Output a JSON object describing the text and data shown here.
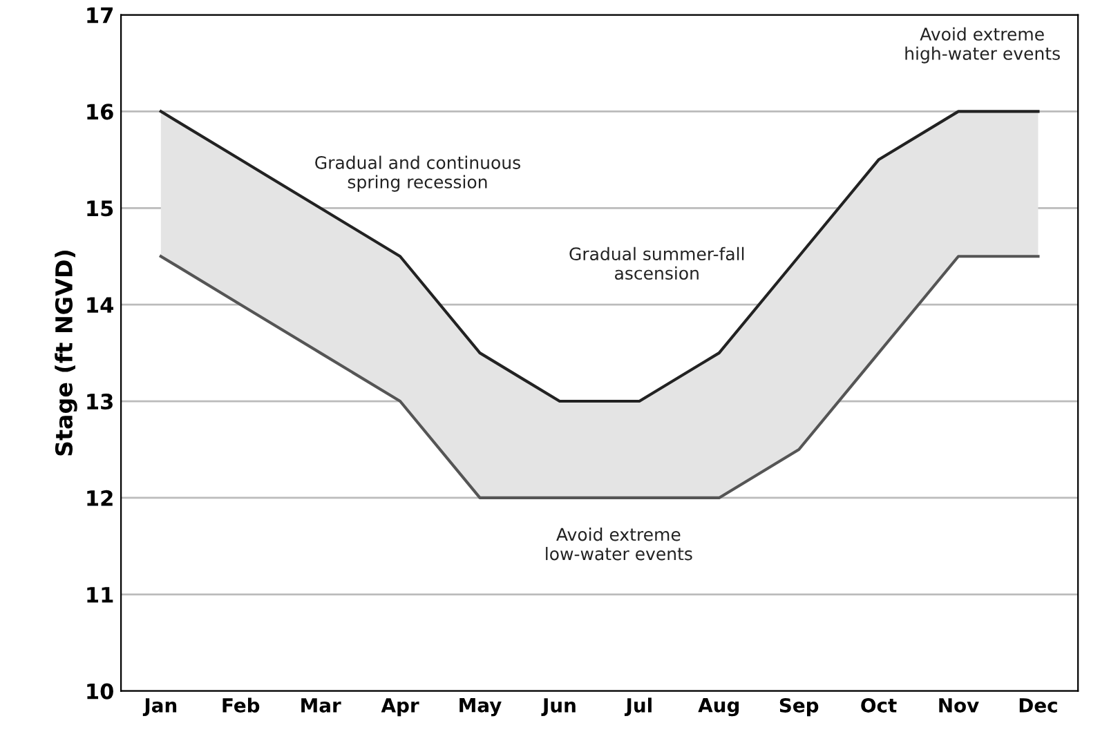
{
  "chart_data": {
    "type": "line",
    "ylabel": "Stage (ft NGVD)",
    "categories": [
      "Jan",
      "Feb",
      "Mar",
      "Apr",
      "May",
      "Jun",
      "Jul",
      "Aug",
      "Sep",
      "Oct",
      "Nov",
      "Dec"
    ],
    "series": [
      {
        "color": "#222222",
        "values": [
          16,
          15.5,
          15,
          14.5,
          13.5,
          13,
          13,
          13.5,
          14.5,
          15.5,
          16,
          16
        ],
        "lower": [
          14.5,
          14,
          13.5,
          13,
          12,
          12,
          12,
          12,
          12.5,
          13.5,
          14.5,
          14.5
        ],
        "upper": [
          16,
          15.5,
          15,
          14.5,
          13.5,
          13,
          13,
          13.5,
          14.5,
          15.5,
          16,
          16
        ]
      },
      {
        "color": "#555555",
        "values": [
          14.5,
          14,
          13.5,
          13,
          12,
          12,
          12,
          12,
          12.5,
          13.5,
          14.5,
          14.5
        ]
      }
    ],
    "ylim": [
      10,
      17
    ],
    "yticks": [
      10,
      11,
      12,
      13,
      14,
      15,
      16,
      17
    ],
    "grid": "y",
    "marker": "none",
    "line_style": "solid",
    "annotations": [
      "Gradual and continuous\nspring recession",
      "Gradual summer-fall\nascension",
      "Avoid extreme\nlow-water events",
      "Avoid extreme\nhigh-water events"
    ]
  }
}
